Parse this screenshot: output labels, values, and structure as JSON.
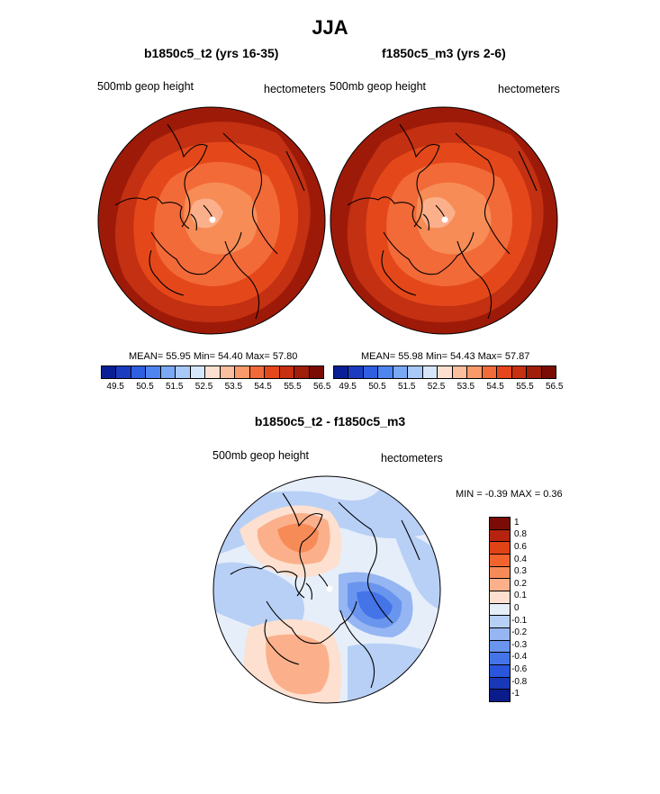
{
  "title": "JJA",
  "panels": [
    {
      "title": "b1850c5_t2 (yrs 16-35)",
      "left_label": "500mb geop height",
      "right_label": "hectometers",
      "stats": "MEAN=  55.95  Min=  54.40  Max=  57.80"
    },
    {
      "title": "f1850c5_m3 (yrs 2-6)",
      "left_label": "500mb geop height",
      "right_label": "hectometers",
      "stats": "MEAN=  55.98  Min=  54.43  Max=  57.87"
    }
  ],
  "diff_panel": {
    "title": "b1850c5_t2 - f1850c5_m3",
    "left_label": "500mb geop height",
    "right_label": "hectometers",
    "stats": "MIN =  -0.39 MAX =   0.36"
  },
  "abs_colorbar": {
    "colors": [
      "#0a1f96",
      "#1c3cc0",
      "#2f5ee0",
      "#4f85f0",
      "#7aa8f4",
      "#a8c8f8",
      "#d6e6fa",
      "#fde0cf",
      "#fbbf9d",
      "#f89a6a",
      "#f26a38",
      "#e5461c",
      "#c73010",
      "#a01e0a",
      "#7a0c05"
    ],
    "ticks": [
      "49.5",
      "50.5",
      "51.5",
      "52.5",
      "53.5",
      "54.5",
      "55.5",
      "56.5"
    ]
  },
  "diff_colorbar": {
    "colors": [
      "#7a0c05",
      "#b62410",
      "#e04316",
      "#f2632e",
      "#f78b58",
      "#fbb08b",
      "#fde0cf",
      "#e6eefa",
      "#b8d0f6",
      "#95b6f2",
      "#6a95ee",
      "#4474e8",
      "#2a55dc",
      "#1838b8",
      "#0a1b8a"
    ],
    "ticks": [
      "1",
      "0.8",
      "0.6",
      "0.4",
      "0.3",
      "0.2",
      "0.1",
      "0",
      "-0.1",
      "-0.2",
      "-0.3",
      "-0.4",
      "-0.6",
      "-0.8",
      "-1"
    ]
  },
  "chart_data": [
    {
      "type": "heatmap",
      "title": "b1850c5_t2 (yrs 16-35)",
      "variable": "500mb geop height",
      "units": "hectometers",
      "projection": "north polar stereographic",
      "mean": 55.95,
      "min": 54.4,
      "max": 57.8,
      "levels": [
        49.5,
        50,
        50.5,
        51,
        51.5,
        52,
        52.5,
        53,
        53.5,
        54,
        54.5,
        55,
        55.5,
        56,
        56.5
      ]
    },
    {
      "type": "heatmap",
      "title": "f1850c5_m3 (yrs 2-6)",
      "variable": "500mb geop height",
      "units": "hectometers",
      "projection": "north polar stereographic",
      "mean": 55.98,
      "min": 54.43,
      "max": 57.87,
      "levels": [
        49.5,
        50,
        50.5,
        51,
        51.5,
        52,
        52.5,
        53,
        53.5,
        54,
        54.5,
        55,
        55.5,
        56,
        56.5
      ]
    },
    {
      "type": "heatmap",
      "title": "b1850c5_t2 - f1850c5_m3",
      "variable": "500mb geop height",
      "units": "hectometers",
      "projection": "north polar stereographic",
      "min": -0.39,
      "max": 0.36,
      "levels": [
        -1,
        -0.8,
        -0.6,
        -0.4,
        -0.3,
        -0.2,
        -0.1,
        0,
        0.1,
        0.2,
        0.3,
        0.4,
        0.6,
        0.8,
        1
      ]
    }
  ]
}
